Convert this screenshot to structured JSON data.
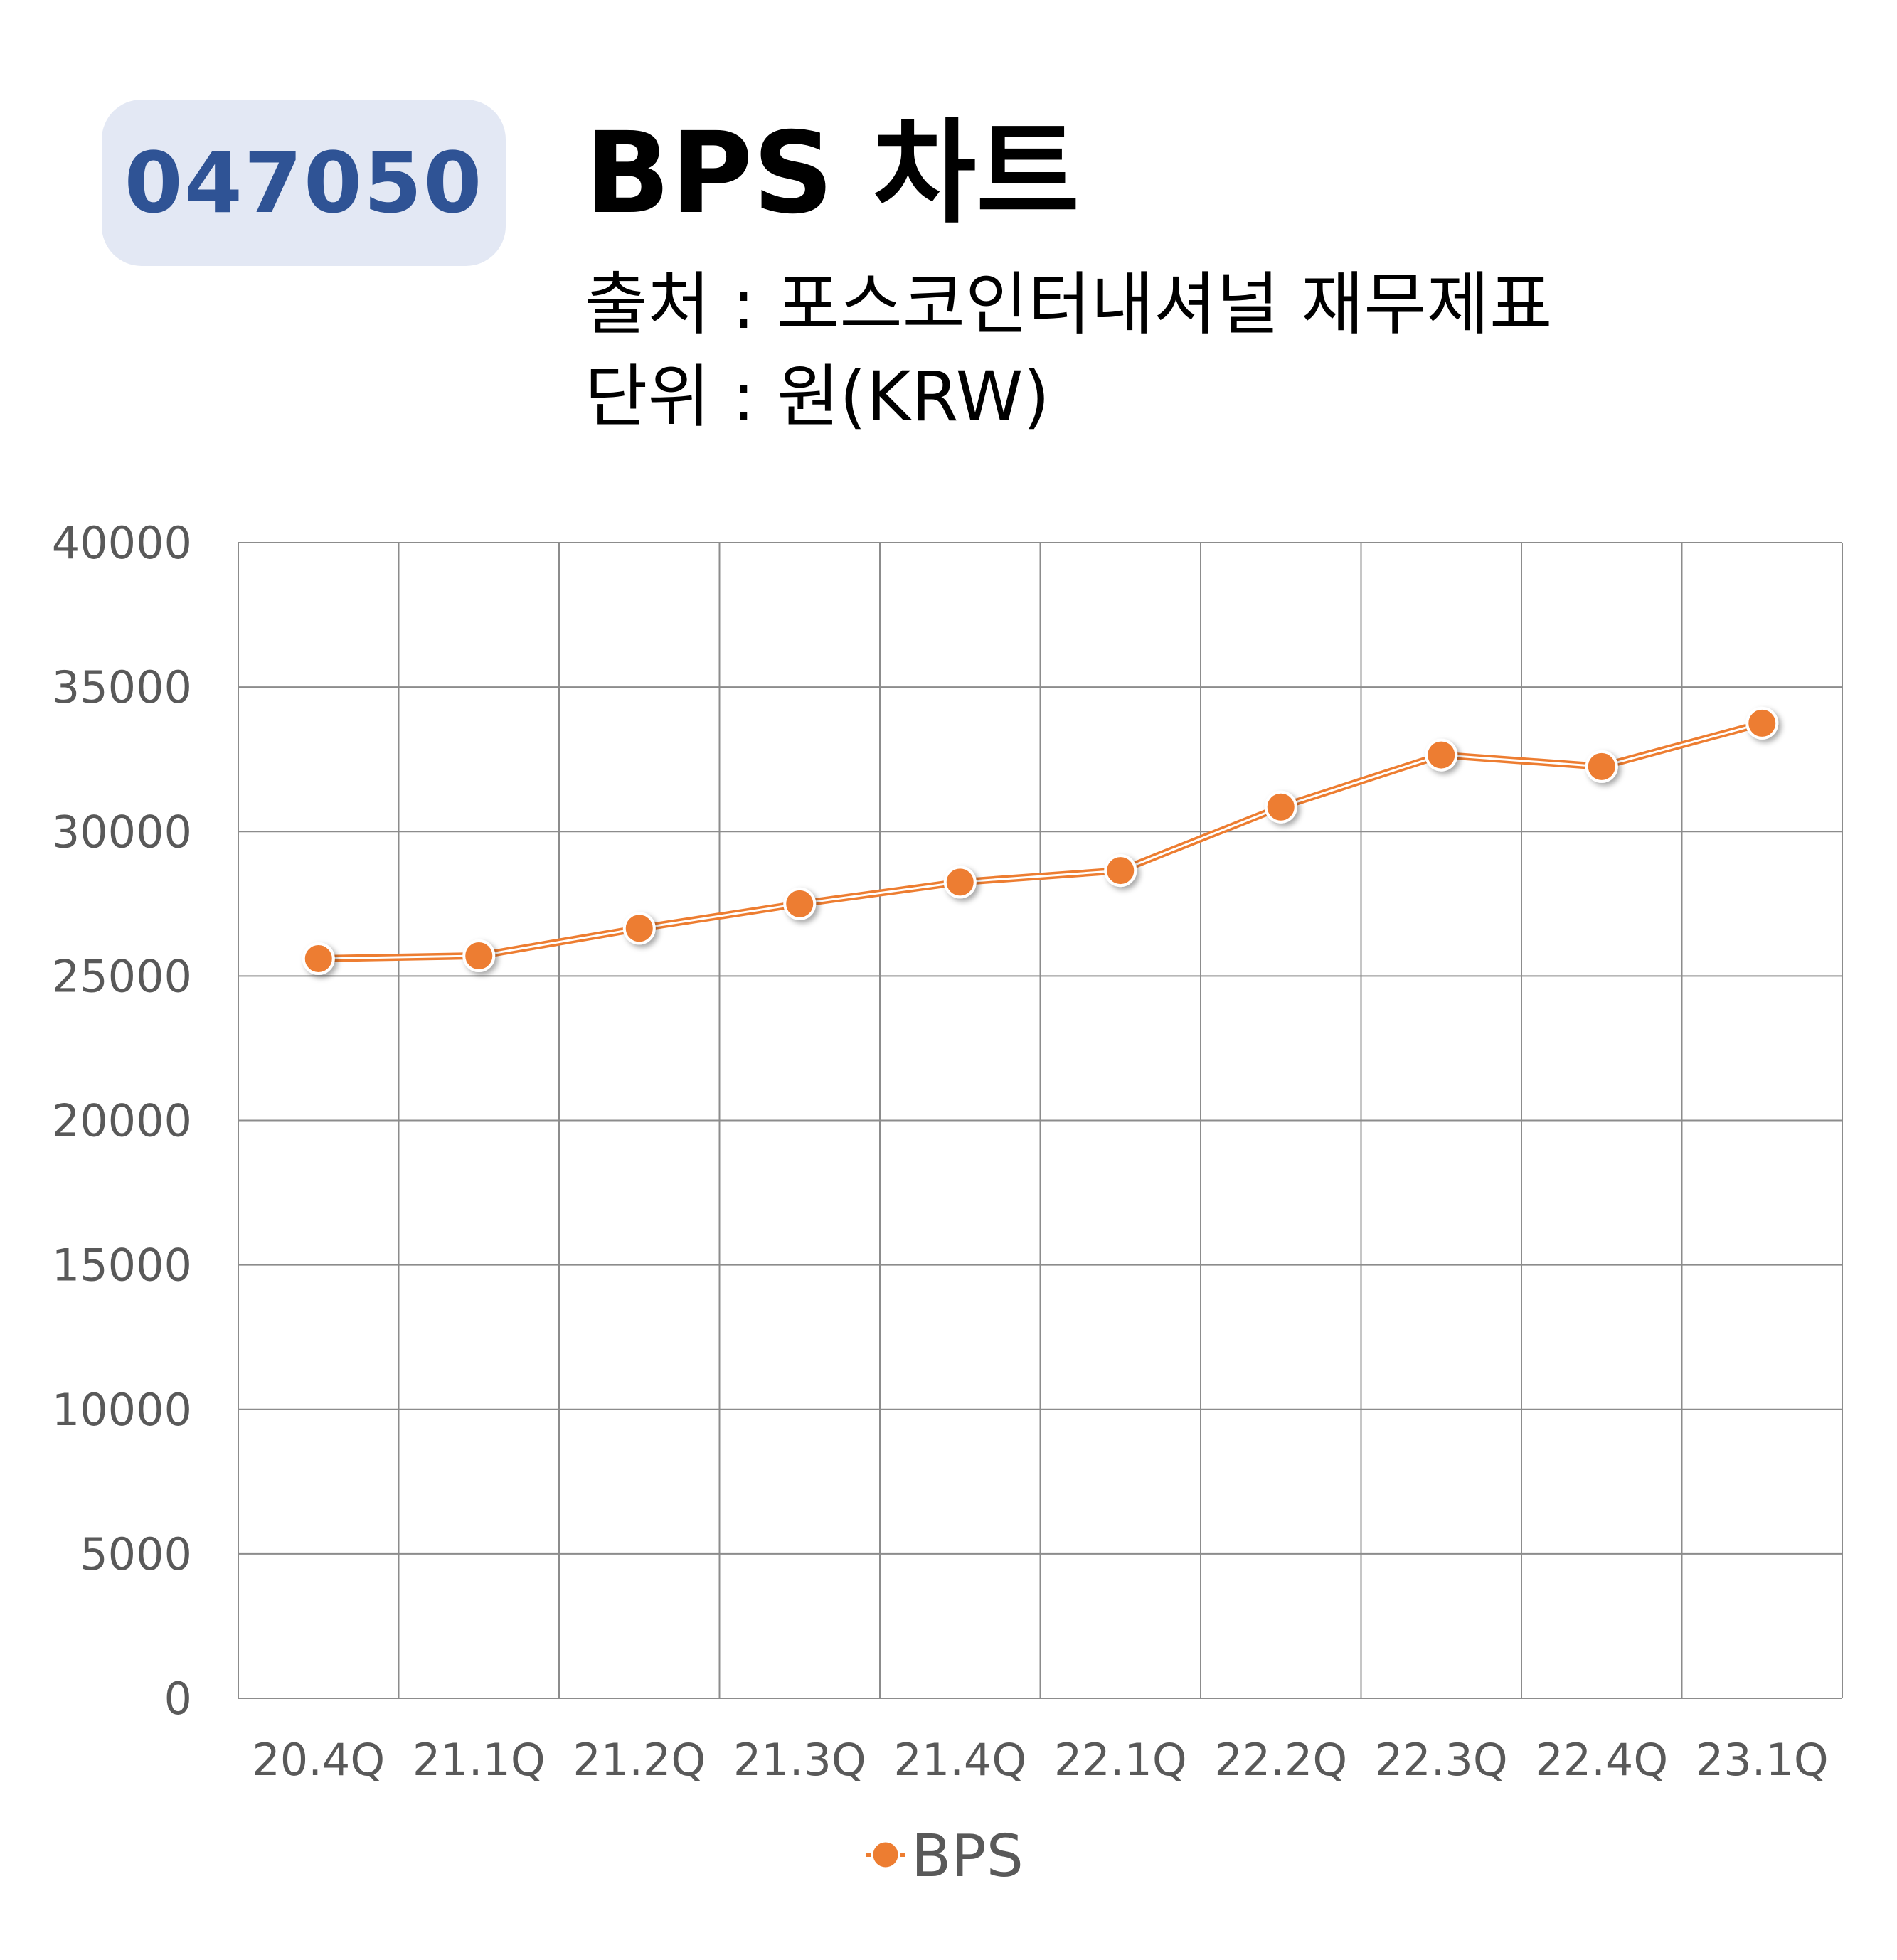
{
  "header": {
    "ticker": "047050",
    "title": "BPS 차트",
    "source": "출처 : 포스코인터내셔널 재무제표",
    "unit": "단위 : 원(KRW)"
  },
  "colors": {
    "ticker_bg": "#e3e8f4",
    "ticker_text": "#2f5395",
    "series": "#ed7d31",
    "grid": "#8c8c8c",
    "tick_text": "#595959"
  },
  "chart_data": {
    "type": "line",
    "categories": [
      "20.4Q",
      "21.1Q",
      "21.2Q",
      "21.3Q",
      "21.4Q",
      "22.1Q",
      "22.2Q",
      "22.3Q",
      "22.4Q",
      "23.1Q"
    ],
    "series": [
      {
        "name": "BPS",
        "values": [
          25600,
          25700,
          26650,
          27500,
          28250,
          28650,
          30850,
          32650,
          32250,
          33750
        ]
      }
    ],
    "y_ticks": [
      "0",
      "5000",
      "10000",
      "15000",
      "20000",
      "25000",
      "30000",
      "35000",
      "40000"
    ],
    "ylim": [
      0,
      40000
    ],
    "grid": true,
    "legend": "bottom-center",
    "marker": "circle"
  }
}
